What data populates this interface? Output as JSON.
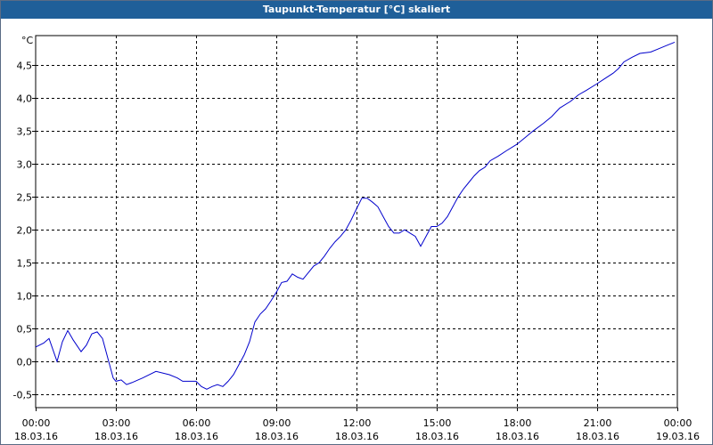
{
  "window": {
    "title": "Taupunkt-Temperatur [°C] skaliert"
  },
  "colors": {
    "titlebar": "#1f5f99",
    "line": "#0000cc",
    "grid": "#000000",
    "plot_bg": "#ffffff"
  },
  "chart_data": {
    "type": "line",
    "title": "Taupunkt-Temperatur [°C] skaliert",
    "ylabel": "°C",
    "xlabel": "",
    "ylim": [
      -0.7,
      4.95
    ],
    "yticks": [
      -0.5,
      0,
      0.5,
      1,
      1.5,
      2,
      2.5,
      3,
      3.5,
      4,
      4.5
    ],
    "ytick_labels": [
      "-0,5",
      "0,0",
      "0,5",
      "1,0",
      "1,5",
      "2,0",
      "2,5",
      "3,0",
      "3,5",
      "4,0",
      "4,5"
    ],
    "xlim": [
      0,
      24
    ],
    "xticks": [
      0,
      3,
      6,
      9,
      12,
      15,
      18,
      21,
      24
    ],
    "xtick_labels": [
      {
        "time": "00:00",
        "date": "18.03.16"
      },
      {
        "time": "03:00",
        "date": "18.03.16"
      },
      {
        "time": "06:00",
        "date": "18.03.16"
      },
      {
        "time": "09:00",
        "date": "18.03.16"
      },
      {
        "time": "12:00",
        "date": "18.03.16"
      },
      {
        "time": "15:00",
        "date": "18.03.16"
      },
      {
        "time": "18:00",
        "date": "18.03.16"
      },
      {
        "time": "21:00",
        "date": "18.03.16"
      },
      {
        "time": "00:00",
        "date": "19.03.16"
      }
    ],
    "grid": true,
    "x_unit": "hours since 18.03.16 00:00",
    "series": [
      {
        "x": [
          0,
          0.3,
          0.5,
          0.8,
          1.0,
          1.2,
          1.4,
          1.7,
          1.9,
          2.1,
          2.3,
          2.5,
          2.7,
          2.9,
          3.0,
          3.2,
          3.4,
          3.6,
          4.0,
          4.5,
          5.0,
          5.3,
          5.5,
          5.8,
          6.0,
          6.2,
          6.4,
          6.6,
          6.8,
          7.0,
          7.2,
          7.4,
          7.6,
          7.8,
          8.0,
          8.2,
          8.4,
          8.6,
          8.8,
          9.0,
          9.2,
          9.4,
          9.6,
          9.8,
          10.0,
          10.2,
          10.4,
          10.6,
          10.8,
          11.0,
          11.2,
          11.4,
          11.6,
          11.8,
          12.0,
          12.2,
          12.4,
          12.6,
          12.8,
          13.0,
          13.2,
          13.4,
          13.6,
          13.8,
          14.0,
          14.2,
          14.4,
          14.6,
          14.8,
          15.0,
          15.2,
          15.4,
          15.6,
          15.8,
          16.0,
          16.2,
          16.4,
          16.6,
          16.8,
          17.0,
          17.3,
          17.6,
          18.0,
          18.3,
          18.6,
          19.0,
          19.3,
          19.6,
          20.0,
          20.3,
          20.6,
          21.0,
          21.3,
          21.6,
          21.8,
          22.0,
          22.3,
          22.6,
          23.0,
          23.3,
          23.6,
          23.9
        ],
        "values": [
          0.22,
          0.28,
          0.35,
          0.0,
          0.3,
          0.47,
          0.33,
          0.15,
          0.25,
          0.42,
          0.45,
          0.35,
          0.05,
          -0.25,
          -0.3,
          -0.28,
          -0.35,
          -0.32,
          -0.25,
          -0.15,
          -0.2,
          -0.25,
          -0.3,
          -0.3,
          -0.3,
          -0.38,
          -0.42,
          -0.38,
          -0.35,
          -0.38,
          -0.3,
          -0.2,
          -0.05,
          0.1,
          0.3,
          0.6,
          0.72,
          0.8,
          0.92,
          1.05,
          1.2,
          1.22,
          1.33,
          1.28,
          1.25,
          1.35,
          1.45,
          1.5,
          1.6,
          1.72,
          1.82,
          1.9,
          2.0,
          2.15,
          2.32,
          2.48,
          2.48,
          2.42,
          2.35,
          2.2,
          2.05,
          1.95,
          1.95,
          2.0,
          1.95,
          1.9,
          1.75,
          1.9,
          2.05,
          2.05,
          2.1,
          2.2,
          2.35,
          2.5,
          2.62,
          2.72,
          2.82,
          2.9,
          2.95,
          3.05,
          3.12,
          3.2,
          3.3,
          3.4,
          3.5,
          3.62,
          3.72,
          3.85,
          3.95,
          4.05,
          4.12,
          4.22,
          4.3,
          4.38,
          4.45,
          4.55,
          4.62,
          4.68,
          4.7,
          4.75,
          4.8,
          4.85
        ]
      }
    ]
  }
}
